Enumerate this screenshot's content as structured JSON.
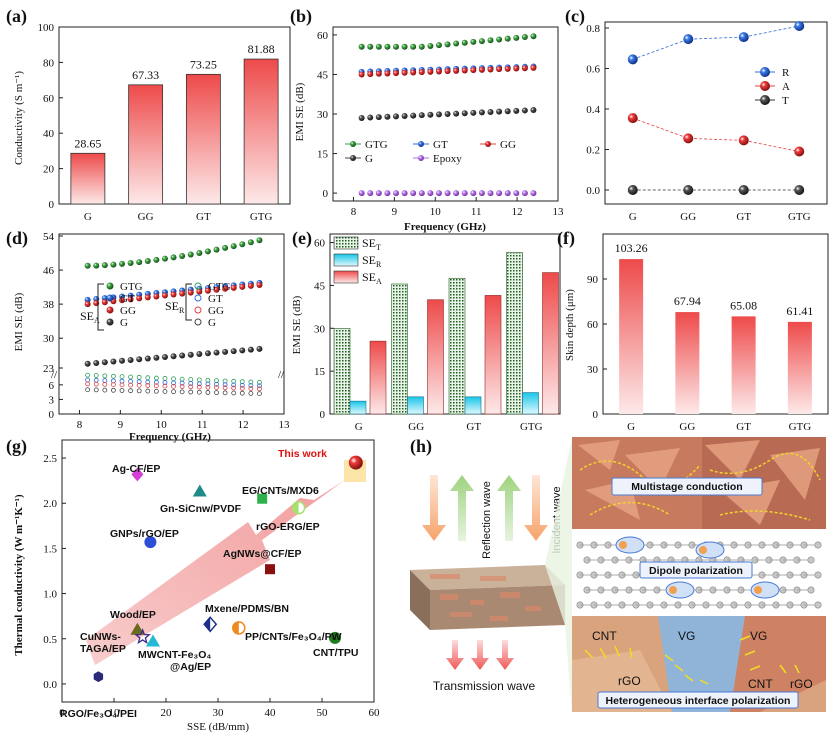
{
  "panels": {
    "a": "(a)",
    "b": "(b)",
    "c": "(c)",
    "d": "(d)",
    "e": "(e)",
    "f": "(f)",
    "g": "(g)",
    "h": "(h)"
  },
  "chart_data": [
    {
      "id": "a",
      "type": "bar",
      "ylabel": "Conductivity (S m⁻¹)",
      "ylim": [
        0,
        100
      ],
      "yticks": [
        0,
        20,
        40,
        60,
        80,
        100
      ],
      "categories": [
        "G",
        "GG",
        "GT",
        "GTG"
      ],
      "values": [
        28.65,
        67.33,
        73.25,
        81.88
      ],
      "value_labels": [
        "28.65",
        "67.33",
        "73.25",
        "81.88"
      ]
    },
    {
      "id": "b",
      "type": "scatter",
      "xlabel": "Frequency (GHz)",
      "ylabel": "EMI SE (dB)",
      "xlim": [
        7.5,
        13
      ],
      "ylim": [
        -3,
        63
      ],
      "xticks": [
        8,
        9,
        10,
        11,
        12,
        13
      ],
      "yticks": [
        0,
        15,
        30,
        45,
        60
      ],
      "series": [
        {
          "name": "GTG",
          "color": "#2e9e5b",
          "y0": 55.5,
          "y1": 59.5
        },
        {
          "name": "GT",
          "color": "#2d6bd6",
          "y0": 46,
          "y1": 48
        },
        {
          "name": "GG",
          "color": "#e04040",
          "y0": 45,
          "y1": 47.5
        },
        {
          "name": "G",
          "color": "#444444",
          "y0": 28.5,
          "y1": 31.5
        },
        {
          "name": "Epoxy",
          "color": "#b070e0",
          "y0": 0,
          "y1": 0
        }
      ]
    },
    {
      "id": "c",
      "type": "line",
      "categories": [
        "G",
        "GG",
        "GT",
        "GTG"
      ],
      "ylim": [
        0,
        0.8
      ],
      "yticks": [
        "0.0",
        "0.2",
        "0.4",
        "0.6",
        "0.8"
      ],
      "series": [
        {
          "name": "R",
          "color": "#2d6bd6",
          "values": [
            0.645,
            0.745,
            0.755,
            0.81
          ]
        },
        {
          "name": "A",
          "color": "#e04040",
          "values": [
            0.355,
            0.255,
            0.245,
            0.19
          ]
        },
        {
          "name": "T",
          "color": "#333333",
          "values": [
            0.0,
            0.0,
            0.0,
            0.0
          ]
        }
      ]
    },
    {
      "id": "d",
      "type": "scatter",
      "xlabel": "Frequency (GHz)",
      "ylabel": "EMI SE (dB)",
      "xticks": [
        8,
        9,
        10,
        11,
        12,
        13
      ],
      "yticks_upper": [
        "23",
        "30",
        "38",
        "46",
        "54"
      ],
      "yticks_lower": [
        "0",
        "3",
        "6"
      ],
      "legend_groups": {
        "SEa": "SE",
        "SEa_sub": "A",
        "SEr": "SE",
        "SEr_sub": "R"
      },
      "series_A": [
        {
          "name": "GTG",
          "color": "#2e9e5b",
          "y0": 47,
          "y1": 53
        },
        {
          "name": "GT",
          "color": "#2d6bd6",
          "y0": 39,
          "y1": 43
        },
        {
          "name": "GG",
          "color": "#e04040",
          "y0": 38,
          "y1": 42.5
        },
        {
          "name": "G",
          "color": "#444444",
          "y0": 24,
          "y1": 27.5
        }
      ],
      "series_R": [
        {
          "name": "GTG",
          "color": "#2e9e5b",
          "y0": 8,
          "y1": 6.5
        },
        {
          "name": "GT",
          "color": "#2d6bd6",
          "y0": 7,
          "y1": 5.8
        },
        {
          "name": "GG",
          "color": "#e04040",
          "y0": 6.2,
          "y1": 5.2
        },
        {
          "name": "G",
          "color": "#444444",
          "y0": 5,
          "y1": 4.2
        }
      ]
    },
    {
      "id": "e",
      "type": "bar",
      "ylabel": "EMI SE (dB)",
      "ylim": [
        0,
        63
      ],
      "yticks": [
        0,
        15,
        30,
        45,
        60
      ],
      "categories": [
        "G",
        "GG",
        "GT",
        "GTG"
      ],
      "legend": [
        {
          "name": "SE",
          "sub": "T"
        },
        {
          "name": "SE",
          "sub": "R"
        },
        {
          "name": "SE",
          "sub": "A"
        }
      ],
      "series": [
        {
          "name": "SE_T",
          "values": [
            30,
            45.5,
            47.5,
            56.5
          ]
        },
        {
          "name": "SE_R",
          "values": [
            4.5,
            6,
            6,
            7.5
          ]
        },
        {
          "name": "SE_A",
          "values": [
            25.5,
            40,
            41.5,
            49.5
          ]
        }
      ]
    },
    {
      "id": "f",
      "type": "bar",
      "ylabel": "Skin depth (μm)",
      "ylim": [
        0,
        120
      ],
      "yticks": [
        0,
        30,
        60,
        90
      ],
      "categories": [
        "G",
        "GG",
        "GT",
        "GTG"
      ],
      "values": [
        103.26,
        67.94,
        65.08,
        61.41
      ],
      "value_labels": [
        "103.26",
        "67.94",
        "65.08",
        "61.41"
      ]
    },
    {
      "id": "g",
      "type": "scatter",
      "xlabel": "SSE (dB/mm)",
      "ylabel": "Thermal conductivity (W m⁻¹K⁻¹)",
      "xlim": [
        0,
        60
      ],
      "ylim": [
        -0.2,
        2.7
      ],
      "xticks": [
        0,
        10,
        20,
        30,
        40,
        50,
        60
      ],
      "yticks": [
        "0.0",
        "0.5",
        "1.0",
        "1.5",
        "2.0",
        "2.5"
      ],
      "points": [
        {
          "label": "Ag-CF/EP",
          "x": 14.5,
          "y": 2.32,
          "color": "#d63fd6",
          "shape": "diamond"
        },
        {
          "label": "Gn-SiCnw/PVDF",
          "x": 26.5,
          "y": 2.13,
          "color": "#1e8a8a",
          "shape": "triangle"
        },
        {
          "label": "EG/CNTs/MXD6",
          "x": 38.5,
          "y": 2.05,
          "color": "#2eb04a",
          "shape": "square"
        },
        {
          "label": "rGO-ERG/EP",
          "x": 45.5,
          "y": 1.95,
          "color": "#a6e06a",
          "shape": "halfcircle"
        },
        {
          "label": "GNPs/rGO/EP",
          "x": 17,
          "y": 1.57,
          "color": "#2d4fd6",
          "shape": "circle"
        },
        {
          "label": "AgNWs@CF/EP",
          "x": 40,
          "y": 1.27,
          "color": "#8a1010",
          "shape": "square"
        },
        {
          "label": "Mxene/PDMS/BN",
          "x": 28.5,
          "y": 0.66,
          "color": "#1e2e8a",
          "shape": "halfdiamond"
        },
        {
          "label": "PP/CNTs/Fe₃O₄/PW",
          "x": 34,
          "y": 0.62,
          "color": "#f08a1e",
          "shape": "halfcircle"
        },
        {
          "label": "CNT/TPU",
          "x": 52.5,
          "y": 0.51,
          "color": "#1e7a1e",
          "shape": "circle"
        },
        {
          "label": "Wood/EP",
          "x": 14.5,
          "y": 0.6,
          "color": "#6b6b1e",
          "shape": "triangle"
        },
        {
          "label": "CuNWs-TAGA/EP",
          "x": 15.5,
          "y": 0.52,
          "color": "#3a2a8a",
          "shape": "star"
        },
        {
          "label": "MWCNT-Fe₃O₄@Ag/EP",
          "x": 17.5,
          "y": 0.47,
          "color": "#22b8d6",
          "shape": "triangle"
        },
        {
          "label": "RGO/Fe₃O₄/PEI",
          "x": 7,
          "y": 0.08,
          "color": "#2a2a7a",
          "shape": "hexagon"
        },
        {
          "label": "This work",
          "x": 56.5,
          "y": 2.45,
          "color": "#e01010",
          "shape": "sphere"
        }
      ],
      "text_labels": {
        "agcf": "Ag-CF/EP",
        "gnsic": "Gn-SiCnw/PVDF",
        "egcnt": "EG/CNTs/MXD6",
        "rgoerg": "rGO-ERG/EP",
        "gnps": "GNPs/rGO/EP",
        "agnws": "AgNWs@CF/EP",
        "mxene": "Mxene/PDMS/BN",
        "pp": "PP/CNTs/Fe₃O₄/PW",
        "cnt": "CNT/TPU",
        "wood": "Wood/EP",
        "cunws1": "CuNWs-",
        "cunws2": "TAGA/EP",
        "mwcnt1": "MWCNT-Fe₃O₄",
        "mwcnt2": "@Ag/EP",
        "rgofe": "RGO/Fe₃O₄/PEI",
        "thiswork": "This work"
      }
    },
    {
      "id": "h",
      "type": "schematic",
      "labels": {
        "reflection": "Reflection wave",
        "incident": "Incident wave",
        "transmission": "Transmission wave",
        "multistage": "Multistage conduction",
        "dipole": "Dipole polarization",
        "hetero": "Heterogeneous interface polarization",
        "cnt1": "CNT",
        "vg1": "VG",
        "vg2": "VG",
        "cnt2": "CNT",
        "rgo1": "rGO",
        "rgo2": "rGO"
      }
    }
  ]
}
